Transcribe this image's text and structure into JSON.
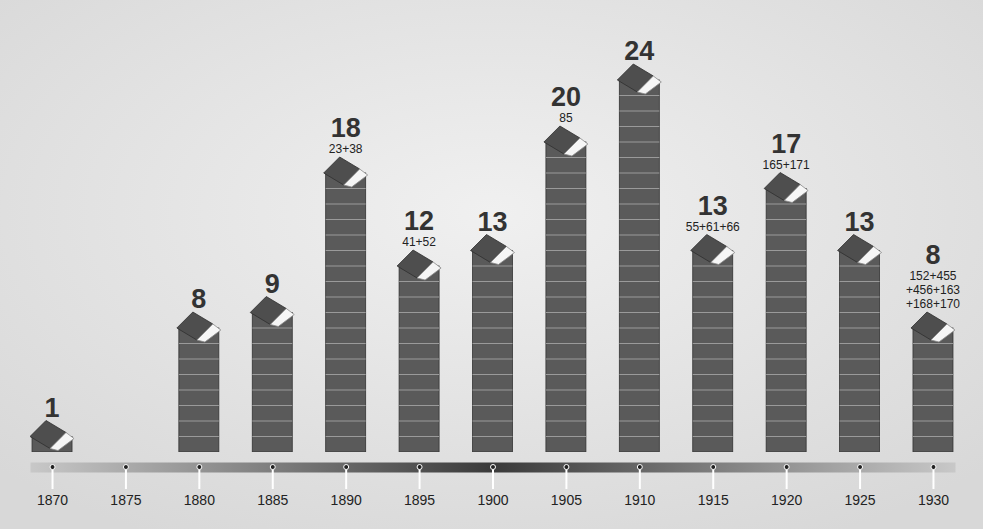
{
  "chart_data": {
    "type": "bar",
    "x": [
      1870,
      1875,
      1880,
      1885,
      1890,
      1895,
      1900,
      1905,
      1910,
      1915,
      1920,
      1925,
      1930
    ],
    "values": [
      1,
      null,
      8,
      9,
      18,
      12,
      13,
      20,
      24,
      13,
      17,
      13,
      8
    ],
    "color": "#5a5a5a",
    "xlim": [
      1868.5,
      1931.5
    ],
    "xticks": [
      1870,
      1875,
      1880,
      1885,
      1890,
      1895,
      1900,
      1905,
      1910,
      1915,
      1920,
      1925,
      1930
    ],
    "ylim": [
      0,
      26
    ],
    "data_labels": true,
    "tick_labels": "x",
    "annotations": [
      {
        "x": 1890,
        "lines": [
          "23+38"
        ]
      },
      {
        "x": 1895,
        "lines": [
          "41+52"
        ]
      },
      {
        "x": 1905,
        "lines": [
          "85"
        ]
      },
      {
        "x": 1915,
        "lines": [
          "55+61+66"
        ]
      },
      {
        "x": 1920,
        "lines": [
          "165+171"
        ]
      },
      {
        "x": 1930,
        "lines": [
          "152+455",
          "+456+163",
          "+168+170"
        ]
      }
    ]
  }
}
